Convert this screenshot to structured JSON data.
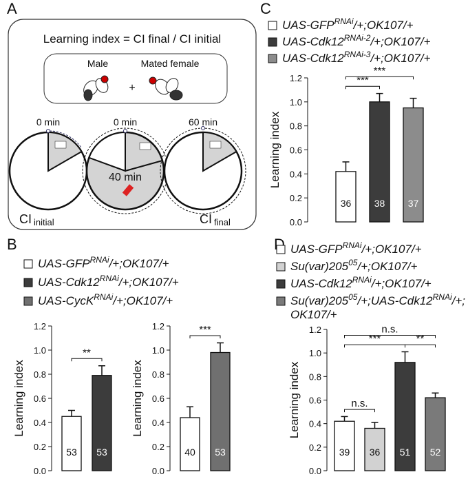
{
  "diagram": {
    "panel": "A",
    "formula": "Learning index = CI final / CI initial",
    "male": "Male",
    "female": "Mated female",
    "plus": "+",
    "times": [
      "0 min",
      "0 min",
      "60 min"
    ],
    "inner_time": "40 min",
    "ci_initial": [
      "CI",
      "initial"
    ],
    "ci_final": [
      "CI",
      "final"
    ]
  },
  "chart_data": [
    {
      "type": "bar",
      "panel": "C",
      "legend": [
        {
          "label": [
            [
              "UAS-GFP",
              "RNAi",
              "/+;OK107/+"
            ]
          ],
          "color": "#ffffff"
        },
        {
          "label": [
            [
              "UAS-Cdk12",
              "RNAi-2",
              "/+;OK107/+"
            ]
          ],
          "color": "#3c3c3c"
        },
        {
          "label": [
            [
              "UAS-Cdk12",
              "RNAi-3",
              "/+;OK107/+"
            ]
          ],
          "color": "#8c8c8c"
        }
      ],
      "plots": [
        {
          "ylabel": "Learning index",
          "ylim": [
            0,
            1.2
          ],
          "yticks": [
            {
              "value": 0,
              "label": "0.0"
            },
            0.2,
            0.4,
            0.6,
            0.8,
            {
              "value": 1,
              "label": "1.0"
            },
            1.2
          ],
          "bars": [
            {
              "legend": 0,
              "value": 0.42,
              "error": 0.08,
              "n": 36
            },
            {
              "legend": 1,
              "value": 1.0,
              "error": 0.07,
              "n": 38
            },
            {
              "legend": 2,
              "value": 0.95,
              "error": 0.08,
              "n": 37
            }
          ],
          "significance": [
            {
              "label": "***",
              "from": 0,
              "to": 1
            },
            {
              "label": "***",
              "from": 0,
              "to": 2
            }
          ]
        }
      ]
    },
    {
      "type": "bar",
      "panel": "B",
      "legend": [
        {
          "label": [
            [
              "UAS-GFP",
              "RNAi",
              "/+;OK107/+"
            ]
          ],
          "color": "#ffffff"
        },
        {
          "label": [
            [
              "UAS-Cdk12",
              "RNAi",
              "/+;OK107/+"
            ]
          ],
          "color": "#3c3c3c"
        },
        {
          "label": [
            [
              "UAS-CycK",
              "RNAi",
              "/+;OK107/+"
            ]
          ],
          "color": "#707070"
        }
      ],
      "plots": [
        {
          "ylabel": "Learning index",
          "ylim": [
            0,
            1.2
          ],
          "yticks": [
            {
              "value": 0,
              "label": "0.0"
            },
            0.2,
            0.4,
            0.6,
            0.8,
            {
              "value": 1,
              "label": "1.0"
            },
            1.2
          ],
          "bars": [
            {
              "legend": 0,
              "value": 0.45,
              "error": 0.05,
              "n": 53
            },
            {
              "legend": 1,
              "value": 0.79,
              "error": 0.08,
              "n": 53
            }
          ],
          "significance": [
            {
              "label": "**",
              "from": 0,
              "to": 1
            }
          ]
        },
        {
          "ylabel": "Learning index",
          "ylim": [
            0,
            1.2
          ],
          "yticks": [
            {
              "value": 0,
              "label": "0.0"
            },
            0.2,
            0.4,
            0.6,
            0.8,
            {
              "value": 1,
              "label": "1.0"
            },
            1.2
          ],
          "bars": [
            {
              "legend": 0,
              "value": 0.44,
              "error": 0.09,
              "n": 40
            },
            {
              "legend": 2,
              "value": 0.98,
              "error": 0.08,
              "n": 53
            }
          ],
          "significance": [
            {
              "label": "***",
              "from": 0,
              "to": 1
            }
          ]
        }
      ]
    },
    {
      "type": "bar",
      "panel": "D",
      "legend": [
        {
          "label": [
            [
              "UAS-GFP",
              "RNAi",
              "/+;OK107/+"
            ]
          ],
          "color": "#ffffff"
        },
        {
          "label": [
            [
              "Su(var)205",
              "05",
              "/+;OK107/+"
            ]
          ],
          "color": "#d2d2d2"
        },
        {
          "label": [
            [
              "UAS-Cdk12",
              "RNAi",
              "/+;OK107/+"
            ]
          ],
          "color": "#3c3c3c"
        },
        {
          "label": [
            [
              "Su(var)205",
              "05",
              "/+;UAS-Cdk12",
              "RNAi",
              "/+;"
            ],
            [
              "OK107/+"
            ]
          ],
          "color": "#7a7a7a"
        }
      ],
      "plots": [
        {
          "ylabel": "Learning index",
          "ylim": [
            0,
            1.2
          ],
          "yticks": [
            {
              "value": 0,
              "label": "0.0"
            },
            0.2,
            0.4,
            0.6,
            0.8,
            {
              "value": 1,
              "label": "1.0"
            },
            1.2
          ],
          "bars": [
            {
              "legend": 0,
              "value": 0.42,
              "error": 0.04,
              "n": 39
            },
            {
              "legend": 1,
              "value": 0.36,
              "error": 0.05,
              "n": 36
            },
            {
              "legend": 2,
              "value": 0.92,
              "error": 0.09,
              "n": 51
            },
            {
              "legend": 3,
              "value": 0.62,
              "error": 0.04,
              "n": 52
            }
          ],
          "significance": [
            {
              "label": "n.s.",
              "from": 0,
              "to": 1
            },
            {
              "label": "***",
              "from": 0,
              "to": 2
            },
            {
              "label": "**",
              "from": 2,
              "to": 3
            },
            {
              "label": "n.s.",
              "from": 0,
              "to": 3
            }
          ]
        }
      ]
    }
  ]
}
